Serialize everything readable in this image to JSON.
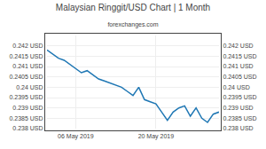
{
  "chart_data": {
    "type": "line",
    "title": "Malaysian Ringgit/USD Chart | 1 Month",
    "subtitle": "forexchanges.com",
    "x": [
      0,
      1,
      2,
      3,
      4,
      5,
      6,
      7,
      8,
      9,
      10,
      11,
      12,
      13,
      14,
      15,
      16,
      17,
      18,
      19,
      20,
      21,
      22,
      23,
      24,
      25,
      26,
      27,
      28,
      29,
      30
    ],
    "values": [
      0.2418,
      0.2416,
      0.2414,
      0.2413,
      0.2411,
      0.2409,
      0.2407,
      0.2408,
      0.2406,
      0.2404,
      0.2403,
      0.2402,
      0.2401,
      0.24,
      0.2398,
      0.2396,
      0.24,
      0.2394,
      0.2393,
      0.2392,
      0.2388,
      0.2384,
      0.2388,
      0.239,
      0.2391,
      0.2386,
      0.239,
      0.2385,
      0.2383,
      0.2387,
      0.2388
    ],
    "xlim": [
      0,
      30
    ],
    "xticks": [
      {
        "value": 5,
        "label": "06 May 2019"
      },
      {
        "value": 19,
        "label": "20 May 2019"
      }
    ],
    "ylim": [
      0.238,
      0.2425
    ],
    "yticks": [
      {
        "value": 0.238,
        "label": "0.238 USD"
      },
      {
        "value": 0.2385,
        "label": "0.2385 USD"
      },
      {
        "value": 0.239,
        "label": "0.239 USD"
      },
      {
        "value": 0.2395,
        "label": "0.2395 USD"
      },
      {
        "value": 0.24,
        "label": "0.24 USD"
      },
      {
        "value": 0.2405,
        "label": "0.2405 USD"
      },
      {
        "value": 0.241,
        "label": "0.241 USD"
      },
      {
        "value": 0.2415,
        "label": "0.2415 USD"
      },
      {
        "value": 0.242,
        "label": "0.242 USD"
      }
    ],
    "y2lim": [
      0.238,
      0.2425
    ],
    "y2ticks": [
      {
        "value": 0.238,
        "label": "0.238 USD"
      },
      {
        "value": 0.2385,
        "label": "0.2385 USD"
      },
      {
        "value": 0.239,
        "label": "0.239 USD"
      },
      {
        "value": 0.2395,
        "label": "0.2395 USD"
      },
      {
        "value": 0.24,
        "label": "0.24 USD"
      },
      {
        "value": 0.2405,
        "label": "0.2405 USD"
      },
      {
        "value": 0.241,
        "label": "0.241 USD"
      },
      {
        "value": 0.2415,
        "label": "0.2415 USD"
      },
      {
        "value": 0.242,
        "label": "0.242 USD"
      }
    ],
    "grid": true
  }
}
